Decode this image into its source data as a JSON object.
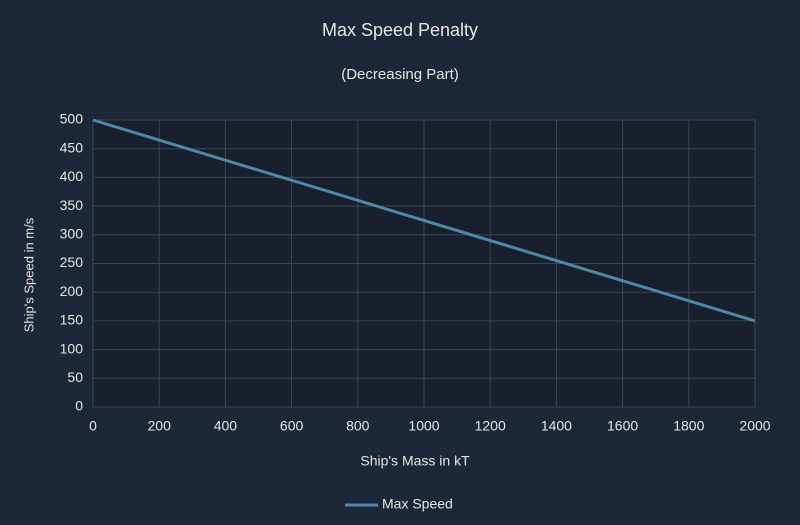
{
  "chart_data": {
    "type": "line",
    "title": "Max Speed Penalty",
    "subtitle": "(Decreasing Part)",
    "x_label": "Ship's Mass in kT",
    "y_label": "Ship's Speed in m/s",
    "x": [
      0,
      2000
    ],
    "series": [
      {
        "name": "Max Speed",
        "color": "#4e88ab",
        "values": [
          500,
          150
        ]
      }
    ],
    "xlim": [
      0,
      2000
    ],
    "xticks": [
      0,
      200,
      400,
      600,
      800,
      1000,
      1200,
      1400,
      1600,
      1800,
      2000
    ],
    "ylim": [
      0,
      500
    ],
    "yticks": [
      0,
      50,
      100,
      150,
      200,
      250,
      300,
      350,
      400,
      450,
      500
    ],
    "grid": true,
    "legend": "bottom"
  }
}
